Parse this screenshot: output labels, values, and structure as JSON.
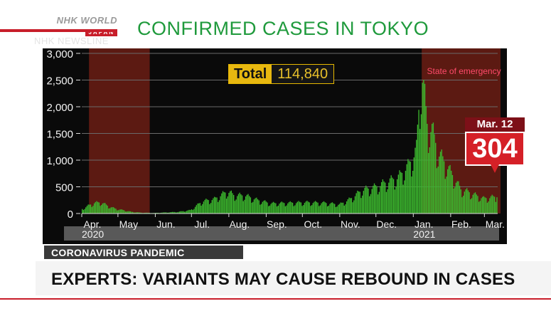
{
  "broadcast": {
    "logo_main": "NHK WORLD",
    "logo_sub": "JAPAN",
    "newsline": "NHK NEWSLINE",
    "headline": "CONFIRMED CASES IN TOKYO",
    "topic": "CORONAVIRUS PANDEMIC",
    "title": "EXPERTS: VARIANTS MAY CAUSE REBOUND IN CASES"
  },
  "total": {
    "label": "Total",
    "value": "114,840"
  },
  "callout": {
    "date": "Mar. 12",
    "value": "304"
  },
  "colors": {
    "bar": "#3cb82e",
    "emergency": "#5c1a12",
    "accent": "#d52027",
    "headline": "#1f9a3c"
  },
  "chart_data": {
    "type": "bar",
    "title": "CONFIRMED CASES IN TOKYO",
    "xlabel": "",
    "ylabel": "",
    "ylim": [
      0,
      3000
    ],
    "yticks": [
      0,
      500,
      1000,
      1500,
      2000,
      2500,
      3000
    ],
    "ytick_labels": [
      "0",
      "500",
      "1,000",
      "1,500",
      "2,000",
      "2,500",
      "3,000"
    ],
    "x_start": "2020-04-01",
    "x_end": "2021-03-12",
    "month_labels": [
      {
        "label": "Apr.",
        "date": "2020-04-01"
      },
      {
        "label": "May",
        "date": "2020-05-01"
      },
      {
        "label": "Jun.",
        "date": "2020-06-01"
      },
      {
        "label": "Jul.",
        "date": "2020-07-01"
      },
      {
        "label": "Aug.",
        "date": "2020-08-01"
      },
      {
        "label": "Sep.",
        "date": "2020-09-01"
      },
      {
        "label": "Oct.",
        "date": "2020-10-01"
      },
      {
        "label": "Nov.",
        "date": "2020-11-01"
      },
      {
        "label": "Dec.",
        "date": "2020-12-01"
      },
      {
        "label": "Jan.",
        "date": "2021-01-01"
      },
      {
        "label": "Feb.",
        "date": "2021-02-01"
      },
      {
        "label": "Mar.",
        "date": "2021-03-01"
      }
    ],
    "year_labels": [
      {
        "label": "2020",
        "date": "2020-04-01"
      },
      {
        "label": "2021",
        "date": "2021-01-01"
      }
    ],
    "emergency_periods": [
      {
        "start": "2020-04-07",
        "end": "2020-05-25"
      },
      {
        "start": "2021-01-08",
        "end": "2021-03-12",
        "label": "State of emergency"
      }
    ],
    "daily_profile": [
      [
        "2020-04-01",
        80
      ],
      [
        "2020-04-06",
        140
      ],
      [
        "2020-04-11",
        190
      ],
      [
        "2020-04-17",
        200
      ],
      [
        "2020-04-22",
        140
      ],
      [
        "2020-04-28",
        90
      ],
      [
        "2020-05-05",
        60
      ],
      [
        "2020-05-12",
        30
      ],
      [
        "2020-05-20",
        15
      ],
      [
        "2020-05-31",
        10
      ],
      [
        "2020-06-10",
        20
      ],
      [
        "2020-06-20",
        30
      ],
      [
        "2020-06-30",
        60
      ],
      [
        "2020-07-10",
        220
      ],
      [
        "2020-07-20",
        260
      ],
      [
        "2020-07-31",
        400
      ],
      [
        "2020-08-05",
        330
      ],
      [
        "2020-08-15",
        320
      ],
      [
        "2020-08-25",
        240
      ],
      [
        "2020-09-05",
        180
      ],
      [
        "2020-09-20",
        190
      ],
      [
        "2020-10-05",
        200
      ],
      [
        "2020-10-20",
        190
      ],
      [
        "2020-11-01",
        160
      ],
      [
        "2020-11-10",
        260
      ],
      [
        "2020-11-20",
        420
      ],
      [
        "2020-11-30",
        470
      ],
      [
        "2020-12-10",
        560
      ],
      [
        "2020-12-20",
        650
      ],
      [
        "2020-12-28",
        850
      ],
      [
        "2021-01-01",
        1000
      ],
      [
        "2021-01-04",
        1150
      ],
      [
        "2021-01-07",
        2200
      ],
      [
        "2021-01-09",
        2450
      ],
      [
        "2021-01-13",
        1600
      ],
      [
        "2021-01-17",
        1500
      ],
      [
        "2021-01-22",
        1100
      ],
      [
        "2021-01-28",
        900
      ],
      [
        "2021-02-04",
        650
      ],
      [
        "2021-02-10",
        430
      ],
      [
        "2021-02-16",
        390
      ],
      [
        "2021-02-22",
        330
      ],
      [
        "2021-03-01",
        270
      ],
      [
        "2021-03-07",
        290
      ],
      [
        "2021-03-12",
        304
      ]
    ]
  }
}
